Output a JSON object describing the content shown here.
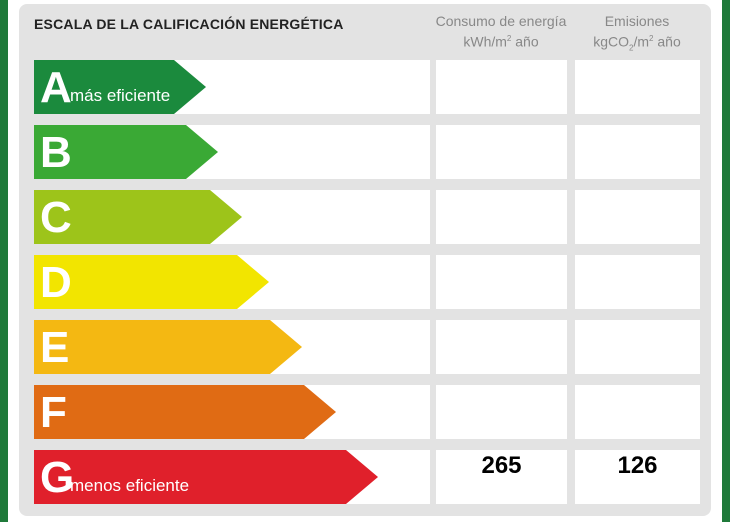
{
  "title": "ESCALA DE LA CALIFICACIÓN ENERGÉTICA",
  "columns": {
    "consumo_line1": "Consumo de energía",
    "consumo_unit_a": "kWh/m",
    "consumo_unit_sup": "2",
    "consumo_unit_b": " año",
    "emisiones_line1": "Emisiones",
    "emisiones_unit_a": "kgCO",
    "emisiones_unit_sub": "2",
    "emisiones_unit_b": "/m",
    "emisiones_unit_sup": "2",
    "emisiones_unit_c": " año"
  },
  "ratings": [
    {
      "letter": "A",
      "label": "más eficiente",
      "color": "#1b8a3d",
      "consumo": "",
      "emisiones": ""
    },
    {
      "letter": "B",
      "label": "",
      "color": "#3aa935",
      "consumo": "",
      "emisiones": ""
    },
    {
      "letter": "C",
      "label": "",
      "color": "#9dc41a",
      "consumo": "",
      "emisiones": ""
    },
    {
      "letter": "D",
      "label": "",
      "color": "#f2e500",
      "consumo": "",
      "emisiones": ""
    },
    {
      "letter": "E",
      "label": "",
      "color": "#f4b812",
      "consumo": "",
      "emisiones": ""
    },
    {
      "letter": "F",
      "label": "",
      "color": "#e06b14",
      "consumo": "",
      "emisiones": ""
    },
    {
      "letter": "G",
      "label": "menos eficiente",
      "color": "#e0202b",
      "consumo": "265",
      "emisiones": "126"
    }
  ]
}
